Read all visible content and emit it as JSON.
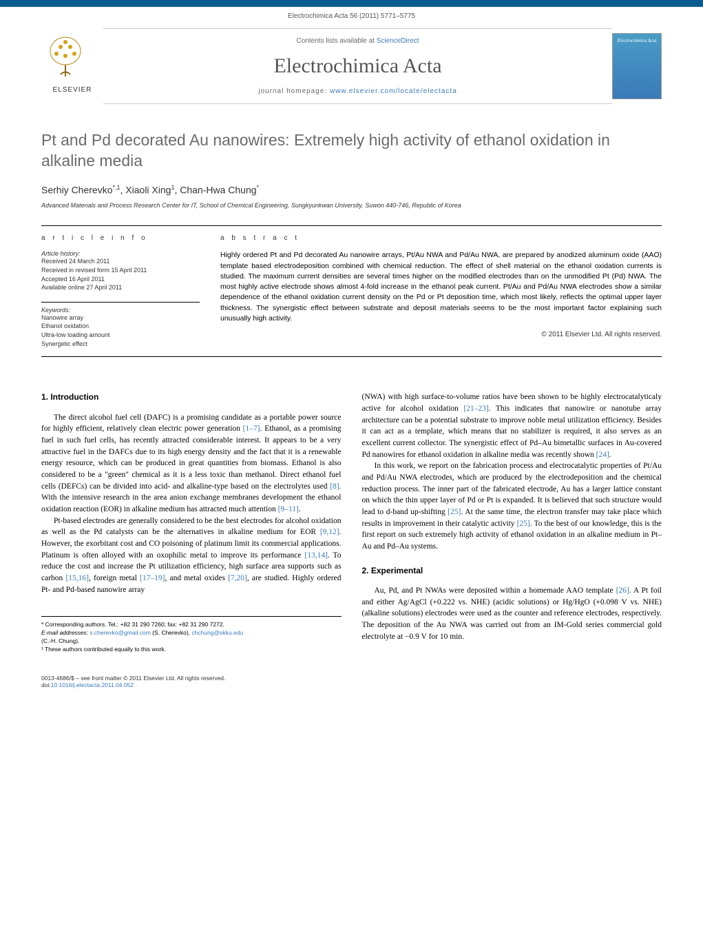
{
  "citation": "Electrochimica Acta 56 (2011) 5771–5775",
  "header": {
    "contents_prefix": "Contents lists available at ",
    "contents_link": "ScienceDirect",
    "journal_name": "Electrochimica Acta",
    "homepage_prefix": "journal homepage: ",
    "homepage_link": "www.elsevier.com/locate/electacta",
    "publisher": "ELSEVIER",
    "cover_title": "Electrochimica Acta"
  },
  "article": {
    "title": "Pt and Pd decorated Au nanowires: Extremely high activity of ethanol oxidation in alkaline media",
    "authors_html": "Serhiy Cherevko",
    "author1": "Serhiy Cherevko",
    "author1_sup": "*,1",
    "author2": "Xiaoli Xing",
    "author2_sup": "1",
    "author3": "Chan-Hwa Chung",
    "author3_sup": "*",
    "affiliation": "Advanced Materials and Process Research Center for IT, School of Chemical Engineering, Sungkyunkwan University, Suwon 440-746, Republic of Korea"
  },
  "info": {
    "label": "a r t i c l e   i n f o",
    "history_label": "Article history:",
    "received": "Received 24 March 2011",
    "revised": "Received in revised form 15 April 2011",
    "accepted": "Accepted 16 April 2011",
    "online": "Available online 27 April 2011",
    "keywords_label": "Keywords:",
    "kw1": "Nanowire array",
    "kw2": "Ethanol oxidation",
    "kw3": "Ultra-low loading amount",
    "kw4": "Synergetic effect"
  },
  "abstract": {
    "label": "a b s t r a c t",
    "text": "Highly ordered Pt and Pd decorated Au nanowire arrays, Pt/Au NWA and Pd/Au NWA, are prepared by anodized aluminum oxide (AAO) template based electrodeposition combined with chemical reduction. The effect of shell material on the ethanol oxidation currents is studied. The maximum current densities are several times higher on the modified electrodes than on the unmodified Pt (Pd) NWA. The most highly active electrode shows almost 4-fold increase in the ethanol peak current. Pt/Au and Pd/Au NWA electrodes show a similar dependence of the ethanol oxidation current density on the Pd or Pt deposition time, which most likely, reflects the optimal upper layer thickness. The synergistic effect between substrate and deposit materials seems to be the most important factor explaining such unusually high activity.",
    "copyright": "© 2011 Elsevier Ltd. All rights reserved."
  },
  "body": {
    "intro_heading": "1. Introduction",
    "intro_p1": "The direct alcohol fuel cell (DAFC) is a promising candidate as a portable power source for highly efficient, relatively clean electric power generation [1–7]. Ethanol, as a promising fuel in such fuel cells, has recently attracted considerable interest. It appears to be a very attractive fuel in the DAFCs due to its high energy density and the fact that it is a renewable energy resource, which can be produced in great quantities from biomass. Ethanol is also considered to be a \"green\" chemical as it is a less toxic than methanol. Direct ethanol fuel cells (DEFCs) can be divided into acid- and alkaline-type based on the electrolytes used [8]. With the intensive research in the area anion exchange membranes development the ethanol oxidation reaction (EOR) in alkaline medium has attracted much attention [9–11].",
    "intro_p2": "Pt-based electrodes are generally considered to be the best electrodes for alcohol oxidation as well as the Pd catalysts can be the alternatives in alkaline medium for EOR [9,12]. However, the exorbitant cost and CO poisoning of platinum limit its commercial applications. Platinum is often alloyed with an oxophilic metal to improve its performance [13,14]. To reduce the cost and increase the Pt utilization efficiency, high surface area supports such as carbon [15,16], foreign metal [17–19], and metal oxides [7,20], are studied. Highly ordered Pt- and Pd-based nanowire array",
    "col2_p1": "(NWA) with high surface-to-volume ratios have been shown to be highly electrocatalyticaly active for alcohol oxidation [21–23]. This indicates that nanowire or nanotube array architecture can be a potential substrate to improve noble metal utilization efficiency. Besides it can act as a template, which means that no stabilizer is required, it also serves as an excellent current collector. The synergistic effect of Pd–Au bimetallic surfaces in Au-covered Pd nanowires for ethanol oxidation in alkaline media was recently shown [24].",
    "col2_p2": "In this work, we report on the fabrication process and electrocatalytic properties of Pt/Au and Pd/Au NWA electrodes, which are produced by the electrodeposition and the chemical reduction process. The inner part of the fabricated electrode, Au has a larger lattice constant on which the thin upper layer of Pd or Pt is expanded. It is believed that such structure would lead to d-band up-shifting [25]. At the same time, the electron transfer may take place which results in improvement in their catalytic activity [25]. To the best of our knowledge, this is the first report on such extremely high activity of ethanol oxidation in an alkaline medium in Pt–Au and Pd–Au systems.",
    "exp_heading": "2. Experimental",
    "exp_p1": "Au, Pd, and Pt NWAs were deposited within a homemade AAO template [26]. A Pt foil and either Ag/AgCl (+0.222 vs. NHE) (acidic solutions) or Hg/HgO (+0.098 V vs. NHE) (alkaline solutions) electrodes were used as the counter and reference electrodes, respectively. The deposition of the Au NWA was carried out from an IM-Gold series commercial gold electrolyte at −0.9 V for 10 min."
  },
  "footnotes": {
    "corr": "* Corresponding authors. Tel.: +82 31 290 7260; fax: +82 31 290 7272.",
    "email_label": "E-mail addresses: ",
    "email1": "s.cherevko@gmail.com",
    "email1_name": " (S. Cherevko), ",
    "email2": "chchung@skku.edu",
    "email2_name": " (C.-H. Chung).",
    "note1": "¹ These authors contributed equally to this work."
  },
  "footer": {
    "issn": "0013-4686/$ – see front matter © 2011 Elsevier Ltd. All rights reserved.",
    "doi_label": "doi:",
    "doi": "10.1016/j.electacta.2011.04.052"
  },
  "colors": {
    "top_bar": "#0a5c8f",
    "link": "#3a7ab8",
    "title_gray": "#6b6b6b"
  }
}
